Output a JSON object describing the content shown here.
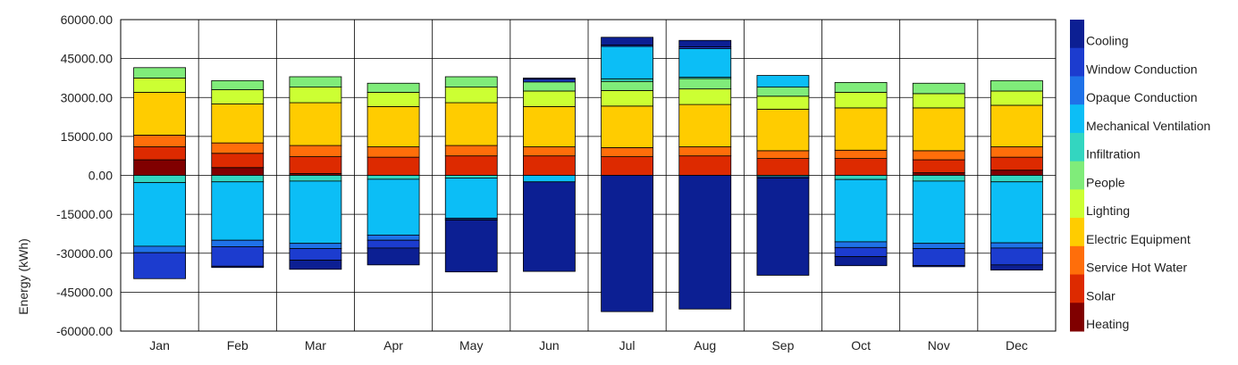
{
  "chart_data": {
    "type": "bar",
    "stacked": true,
    "title": "",
    "xlabel": "",
    "ylabel": "Energy (kWh)",
    "ylim": [
      -60000,
      60000
    ],
    "ytick_step": 15000,
    "yticks": [
      "60000.00",
      "45000.00",
      "30000.00",
      "15000.00",
      "0.00",
      "-15000.00",
      "-30000.00",
      "-45000.00",
      "-60000.00"
    ],
    "grid": true,
    "legend_position": "right",
    "categories": [
      "Jan",
      "Feb",
      "Mar",
      "Apr",
      "May",
      "Jun",
      "Jul",
      "Aug",
      "Sep",
      "Oct",
      "Nov",
      "Dec"
    ],
    "series": [
      {
        "name": "Heating",
        "color": "#800000",
        "positive": [
          6000,
          3000,
          700,
          0,
          0,
          0,
          0,
          0,
          0,
          0,
          1000,
          2000
        ],
        "negative": [
          0,
          0,
          0,
          0,
          0,
          0,
          0,
          0,
          0,
          0,
          0,
          0
        ]
      },
      {
        "name": "Solar",
        "color": "#DD2A00",
        "positive": [
          5000,
          5500,
          6500,
          7000,
          7500,
          7500,
          7200,
          7500,
          6500,
          6500,
          5000,
          5000
        ],
        "negative": [
          0,
          0,
          0,
          0,
          0,
          0,
          0,
          0,
          0,
          0,
          0,
          0
        ]
      },
      {
        "name": "Service Hot Water",
        "color": "#FF6E0A",
        "positive": [
          4500,
          4000,
          4300,
          4000,
          4000,
          3500,
          3500,
          3500,
          3000,
          3200,
          3500,
          4000
        ],
        "negative": [
          0,
          0,
          0,
          0,
          0,
          0,
          0,
          0,
          0,
          0,
          0,
          0
        ]
      },
      {
        "name": "Electric Equipment",
        "color": "#FFCC00",
        "positive": [
          16500,
          15000,
          16500,
          15500,
          16500,
          15500,
          16000,
          16300,
          16000,
          16300,
          16500,
          16000
        ],
        "negative": [
          0,
          0,
          0,
          0,
          0,
          0,
          0,
          0,
          0,
          0,
          0,
          0
        ]
      },
      {
        "name": "Lighting",
        "color": "#CCFF33",
        "positive": [
          5500,
          5500,
          6000,
          5500,
          6000,
          6000,
          6000,
          6000,
          5000,
          6000,
          5500,
          5500
        ],
        "negative": [
          0,
          0,
          0,
          0,
          0,
          0,
          0,
          0,
          0,
          0,
          0,
          0
        ]
      },
      {
        "name": "People",
        "color": "#80EC7A",
        "positive": [
          4000,
          3500,
          4000,
          3500,
          4000,
          3500,
          3500,
          4000,
          3500,
          3800,
          4000,
          4000
        ],
        "negative": [
          0,
          0,
          0,
          0,
          0,
          0,
          0,
          0,
          0,
          0,
          0,
          0
        ]
      },
      {
        "name": "Infiltration",
        "color": "#33D6C0",
        "positive": [
          0,
          0,
          0,
          0,
          0,
          0,
          1000,
          500,
          0,
          0,
          0,
          0
        ],
        "negative": [
          -2800,
          -2500,
          -2200,
          -1500,
          -1000,
          0,
          0,
          0,
          -500,
          -1600,
          -2200,
          -2500
        ]
      },
      {
        "name": "Mechanical Ventilation",
        "color": "#0CBEF6",
        "positive": [
          0,
          0,
          0,
          0,
          0,
          0,
          12500,
          11000,
          4500,
          0,
          0,
          0
        ],
        "negative": [
          -24500,
          -22500,
          -24000,
          -21500,
          -15500,
          -2500,
          0,
          0,
          0,
          -24000,
          -24000,
          -23500
        ]
      },
      {
        "name": "Opaque Conduction",
        "color": "#1F72E8",
        "positive": [
          0,
          0,
          0,
          0,
          0,
          0,
          0,
          0,
          0,
          0,
          0,
          0
        ],
        "negative": [
          -2500,
          -2500,
          -2000,
          -2000,
          -500,
          0,
          0,
          0,
          0,
          -2200,
          -2000,
          -2000
        ]
      },
      {
        "name": "Window Conduction",
        "color": "#1C3CCF",
        "positive": [
          0,
          0,
          0,
          0,
          0,
          1000,
          500,
          700,
          0,
          0,
          0,
          0
        ],
        "negative": [
          -10000,
          -7500,
          -4500,
          -3000,
          -200,
          0,
          0,
          0,
          -500,
          -3500,
          -6500,
          -6500
        ]
      },
      {
        "name": "Cooling",
        "color": "#0C1F93",
        "positive": [
          0,
          0,
          0,
          0,
          0,
          500,
          3000,
          2500,
          0,
          0,
          0,
          0
        ],
        "negative": [
          0,
          -500,
          -3500,
          -6500,
          -20000,
          -34500,
          -52500,
          -51500,
          -37500,
          -3500,
          -500,
          -2000
        ]
      }
    ]
  }
}
